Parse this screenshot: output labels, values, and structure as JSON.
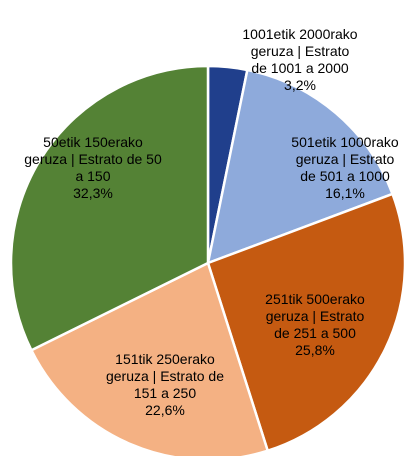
{
  "chart_data": {
    "type": "pie",
    "categories": [
      "1001etik 2000rako geruza | Estrato de 1001 a 2000",
      "501etik 1000rako geruza | Estrato de 501 a 1000",
      "251tik 500erako geruza | Estrato de 251 a 500",
      "151tik 250erako geruza | Estrato de 151 a 250",
      "50etik 150erako geruza | Estrato de 50 a 150"
    ],
    "values": [
      3.2,
      16.1,
      25.8,
      22.6,
      32.3
    ],
    "value_labels": [
      "3,2%",
      "16,1%",
      "25,8%",
      "22,6%",
      "32,3%"
    ],
    "colors": [
      "#203f8c",
      "#8eaadb",
      "#c55a11",
      "#f4b183",
      "#548235"
    ]
  }
}
